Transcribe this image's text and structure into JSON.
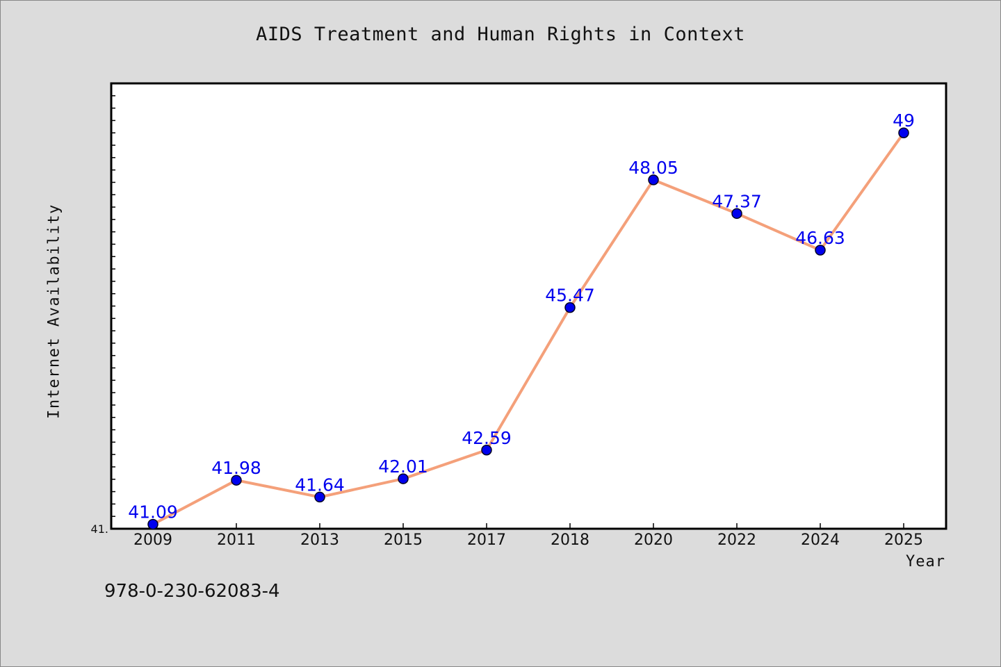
{
  "chart_data": {
    "type": "line",
    "title": "AIDS Treatment and Human Rights in Context",
    "xlabel": "Year",
    "ylabel": "Internet Availability",
    "categories": [
      "2009",
      "2011",
      "2013",
      "2015",
      "2017",
      "2018",
      "2020",
      "2022",
      "2024",
      "2025"
    ],
    "series": [
      {
        "values": [
          41.09,
          41.98,
          41.64,
          42.01,
          42.59,
          45.47,
          48.05,
          47.37,
          46.63,
          49
        ],
        "data_labels": [
          "41.09",
          "41.98",
          "41.64",
          "42.01",
          "42.59",
          "45.47",
          "48.05",
          "47.37",
          "46.63",
          "49"
        ]
      }
    ],
    "ylim": [
      41,
      50
    ],
    "y_tick_label": "41.",
    "grid": false,
    "line_color": "#f4a07a",
    "marker_color": "#0000ee",
    "label_color": "#0000ee"
  },
  "footer": {
    "isbn": "978-0-230-62083-4"
  }
}
